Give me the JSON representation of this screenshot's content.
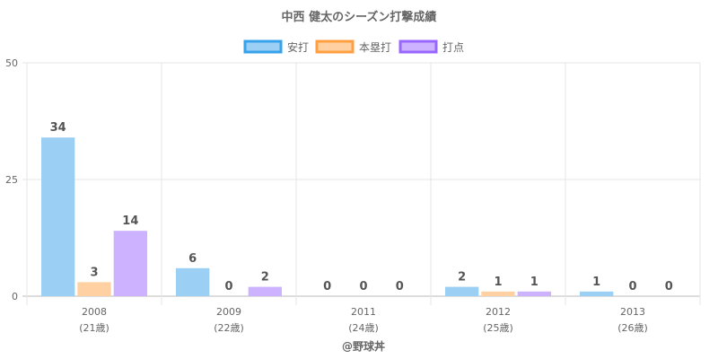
{
  "chart_data": {
    "type": "bar",
    "title": "中西 健太のシーズン打撃成績",
    "categories": [
      "2008",
      "2009",
      "2011",
      "2012",
      "2013"
    ],
    "category_sublabels": [
      "(21歳)",
      "(22歳)",
      "(24歳)",
      "(25歳)",
      "(26歳)"
    ],
    "series": [
      {
        "name": "安打",
        "values": [
          34,
          6,
          0,
          2,
          1
        ],
        "color": "#9ccff4",
        "border": "#36a2eb"
      },
      {
        "name": "本塁打",
        "values": [
          3,
          0,
          0,
          1,
          0
        ],
        "color": "#ffd0a1",
        "border": "#ff9f40"
      },
      {
        "name": "打点",
        "values": [
          14,
          2,
          0,
          1,
          0
        ],
        "color": "#ccb2ff",
        "border": "#9966ff"
      }
    ],
    "yticks": [
      "50",
      "25",
      "0"
    ],
    "ylim": [
      0,
      50
    ],
    "grid": true,
    "legend_position": "top",
    "footer": "@野球丼"
  }
}
